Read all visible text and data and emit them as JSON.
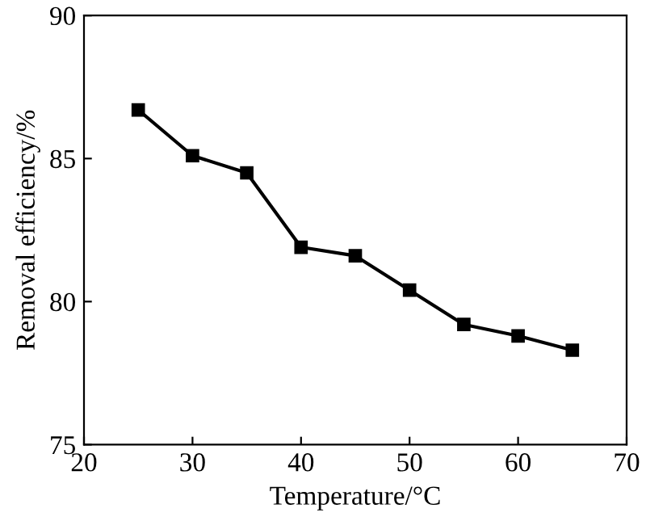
{
  "chart_data": {
    "type": "line",
    "xlabel": "Temperature/°C",
    "ylabel": "Removal efficiency/%",
    "x": [
      25,
      30,
      35,
      40,
      45,
      50,
      55,
      60,
      65
    ],
    "series": [
      {
        "color": "#000000",
        "values": [
          86.7,
          85.1,
          84.5,
          81.9,
          81.6,
          80.4,
          79.2,
          78.8,
          78.3
        ]
      }
    ],
    "xlim": [
      20,
      70
    ],
    "xticks": [
      20,
      30,
      40,
      50,
      60,
      70
    ],
    "ylim": [
      75,
      90
    ],
    "yticks": [
      75,
      80,
      85,
      90
    ],
    "marker": "square",
    "line_style": "solid",
    "grid": false,
    "legend": false
  }
}
